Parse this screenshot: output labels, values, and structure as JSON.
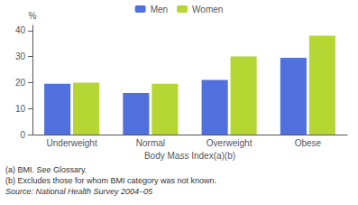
{
  "chart_data": {
    "type": "bar",
    "categories": [
      "Underweight",
      "Normal",
      "Overweight",
      "Obese"
    ],
    "series": [
      {
        "name": "Men",
        "values": [
          19.5,
          16.0,
          21.0,
          29.5
        ]
      },
      {
        "name": "Women",
        "values": [
          20.0,
          19.5,
          30.0,
          38.0
        ]
      }
    ],
    "xlabel": "Body Mass Index(a)(b)",
    "ylabel": "%",
    "ylim": [
      0,
      42
    ],
    "yticks": [
      0,
      10,
      20,
      30,
      40
    ],
    "grid": false,
    "legend": "top",
    "annotations": [
      "(a) BMI. See Glossary.",
      "(b) Excludes those for whom BMI category was not known.",
      "Source: National Health Survey 2004–05"
    ]
  }
}
